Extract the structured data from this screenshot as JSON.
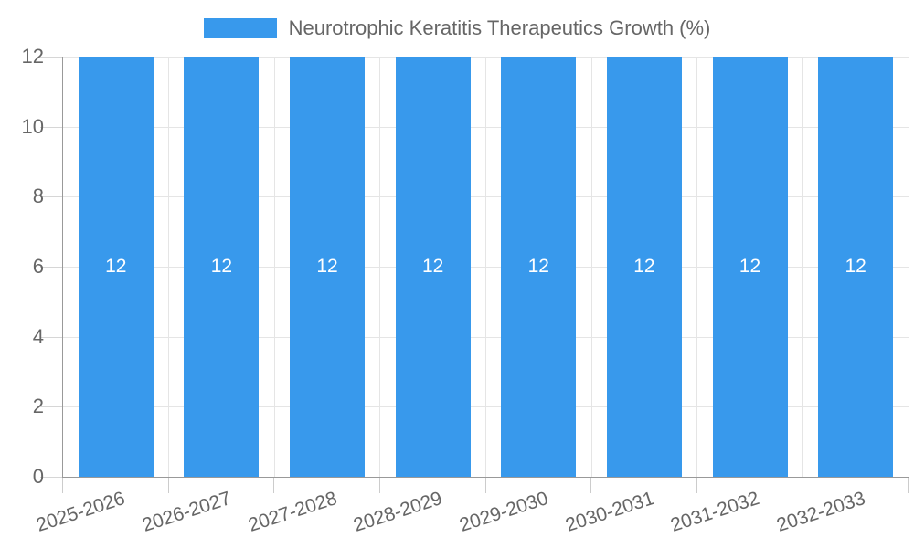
{
  "chart_data": {
    "type": "bar",
    "title": "Neurotrophic Keratitis Therapeutics Growth (%)",
    "categories": [
      "2025-2026",
      "2026-2027",
      "2027-2028",
      "2028-2029",
      "2029-2030",
      "2030-2031",
      "2031-2032",
      "2032-2033"
    ],
    "values": [
      12,
      12,
      12,
      12,
      12,
      12,
      12,
      12
    ],
    "data_labels": [
      "12",
      "12",
      "12",
      "12",
      "12",
      "12",
      "12",
      "12"
    ],
    "xlabel": "",
    "ylabel": "",
    "ylim": [
      0,
      12
    ],
    "yticks": [
      0,
      2,
      4,
      6,
      8,
      10,
      12
    ],
    "grid": true,
    "legend_position": "top",
    "legend_label": "Neurotrophic Keratitis Therapeutics Growth (%)",
    "colors": {
      "bar": "#3899EC",
      "value_label": "#ffffff",
      "grid": "#e5e5e5",
      "axis_line": "#999999",
      "tick": "#d6d6d6",
      "text": "#666666",
      "background": "#ffffff"
    }
  }
}
